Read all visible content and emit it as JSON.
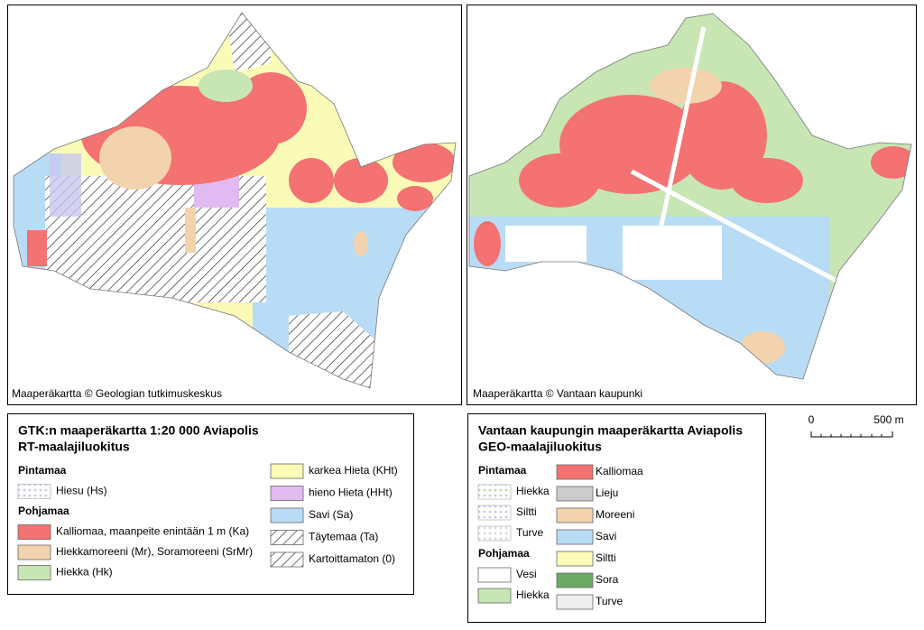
{
  "maps": [
    {
      "credit": "Maaperäkartta © Geologian tutkimuskeskus"
    },
    {
      "credit": "Maaperäkartta © Vantaan kaupunki"
    }
  ],
  "legends": [
    {
      "title": [
        "GTK:n maaperäkartta 1:20 000 Aviapolis",
        "RT-maalajiluokitus"
      ],
      "columns": [
        [
          {
            "heading": "Pintamaa"
          },
          {
            "label": "Hiesu (Hs)",
            "color": "#c8c8ee",
            "pattern": "dots"
          },
          {
            "heading": "Pohjamaa"
          },
          {
            "label": "Kalliomaa, maanpeite enintään 1 m (Ka)",
            "color": "#f47272"
          },
          {
            "label": "Hiekkamoreeni (Mr), Soramoreeni (SrMr)",
            "color": "#f2d3ae"
          },
          {
            "label": "Hiekka (Hk)",
            "color": "#c7e6b3"
          }
        ],
        [
          {
            "label": "karkea Hieta (KHt)",
            "color": "#fbfbb8"
          },
          {
            "label": "hieno Hieta (HHt)",
            "color": "#e2baf2"
          },
          {
            "label": "Savi (Sa)",
            "color": "#b9dcf6"
          },
          {
            "label": "Täytemaa (Ta)",
            "color": "#ffffff",
            "pattern": "hatch"
          },
          {
            "label": "Kartoittamaton (0)",
            "color": "#ffffff",
            "pattern": "hatch"
          }
        ]
      ]
    },
    {
      "title": [
        "Vantaan kaupungin maaperäkartta Aviapolis",
        "GEO-maalajiluokitus"
      ],
      "columns": [
        [
          {
            "heading": "Pintamaa"
          },
          {
            "label": "Hiekka",
            "color": "#b5dca0",
            "pattern": "dots"
          },
          {
            "label": "Siltti",
            "color": "#c8c8ee",
            "pattern": "dots"
          },
          {
            "label": "Turve",
            "color": "#d8d8d8",
            "pattern": "dots"
          },
          {
            "heading": "Pohjamaa"
          },
          {
            "label": "Vesi",
            "color": "#ffffff"
          },
          {
            "label": "Hiekka",
            "color": "#c7e6b3"
          }
        ],
        [
          {
            "label": "Kalliomaa",
            "color": "#f47272"
          },
          {
            "label": "Lieju",
            "color": "#cccccc"
          },
          {
            "label": "Moreeni",
            "color": "#f2d3ae"
          },
          {
            "label": "Savi",
            "color": "#b9dcf6"
          },
          {
            "label": "Siltti",
            "color": "#fbfbb8"
          },
          {
            "label": "Sora",
            "color": "#6aaa64"
          },
          {
            "label": "Turve",
            "color": "#eeeeee"
          }
        ]
      ]
    }
  ],
  "scale": {
    "start": "0",
    "end": "500 m"
  }
}
